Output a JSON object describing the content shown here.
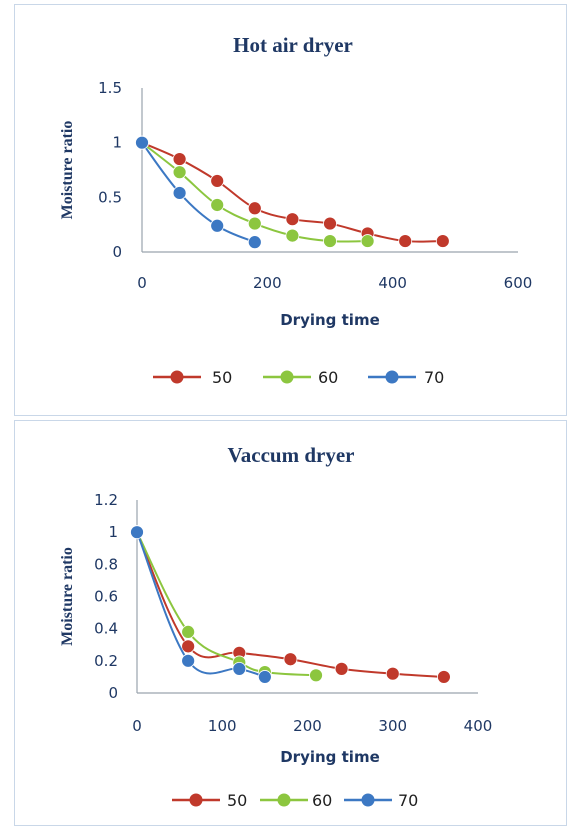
{
  "chart_data": [
    {
      "type": "line",
      "title": "Hot air dryer",
      "xlabel": "Drying time",
      "ylabel": "Moisture ratio",
      "xlim": [
        0,
        600
      ],
      "ylim": [
        0,
        1.5
      ],
      "xticks": [
        "0",
        "200",
        "400",
        "600"
      ],
      "yticks": [
        "0",
        "0.5",
        "1",
        "1.5"
      ],
      "grid": false,
      "legend": "bottom",
      "series": [
        {
          "name": "50",
          "color": "#c0392b",
          "x": [
            0,
            60,
            120,
            180,
            240,
            300,
            360,
            420,
            480
          ],
          "y": [
            1.0,
            0.85,
            0.65,
            0.4,
            0.3,
            0.26,
            0.17,
            0.1,
            0.1
          ]
        },
        {
          "name": "60",
          "color": "#8cc63f",
          "x": [
            0,
            60,
            120,
            180,
            240,
            300,
            360
          ],
          "y": [
            1.0,
            0.73,
            0.43,
            0.26,
            0.15,
            0.1,
            0.1
          ]
        },
        {
          "name": "70",
          "color": "#3c78c3",
          "x": [
            0,
            60,
            120,
            180
          ],
          "y": [
            1.0,
            0.54,
            0.24,
            0.09
          ]
        }
      ]
    },
    {
      "type": "line",
      "title": "Vaccum dryer",
      "xlabel": "Drying time",
      "ylabel": "Moisture ratio",
      "xlim": [
        0,
        400
      ],
      "ylim": [
        0,
        1.2
      ],
      "xticks": [
        "0",
        "100",
        "200",
        "300",
        "400"
      ],
      "yticks": [
        "0",
        "0.2",
        "0.4",
        "0.6",
        "0.8",
        "1",
        "1.2"
      ],
      "grid": false,
      "legend": "bottom",
      "series": [
        {
          "name": "50",
          "color": "#c0392b",
          "x": [
            0,
            60,
            120,
            180,
            240,
            300,
            360
          ],
          "y": [
            1.0,
            0.29,
            0.25,
            0.21,
            0.15,
            0.12,
            0.1
          ]
        },
        {
          "name": "60",
          "color": "#8cc63f",
          "x": [
            0,
            60,
            120,
            150,
            210
          ],
          "y": [
            1.0,
            0.38,
            0.19,
            0.13,
            0.11
          ]
        },
        {
          "name": "70",
          "color": "#3c78c3",
          "x": [
            0,
            60,
            120,
            150
          ],
          "y": [
            1.0,
            0.2,
            0.15,
            0.1
          ]
        }
      ]
    }
  ]
}
